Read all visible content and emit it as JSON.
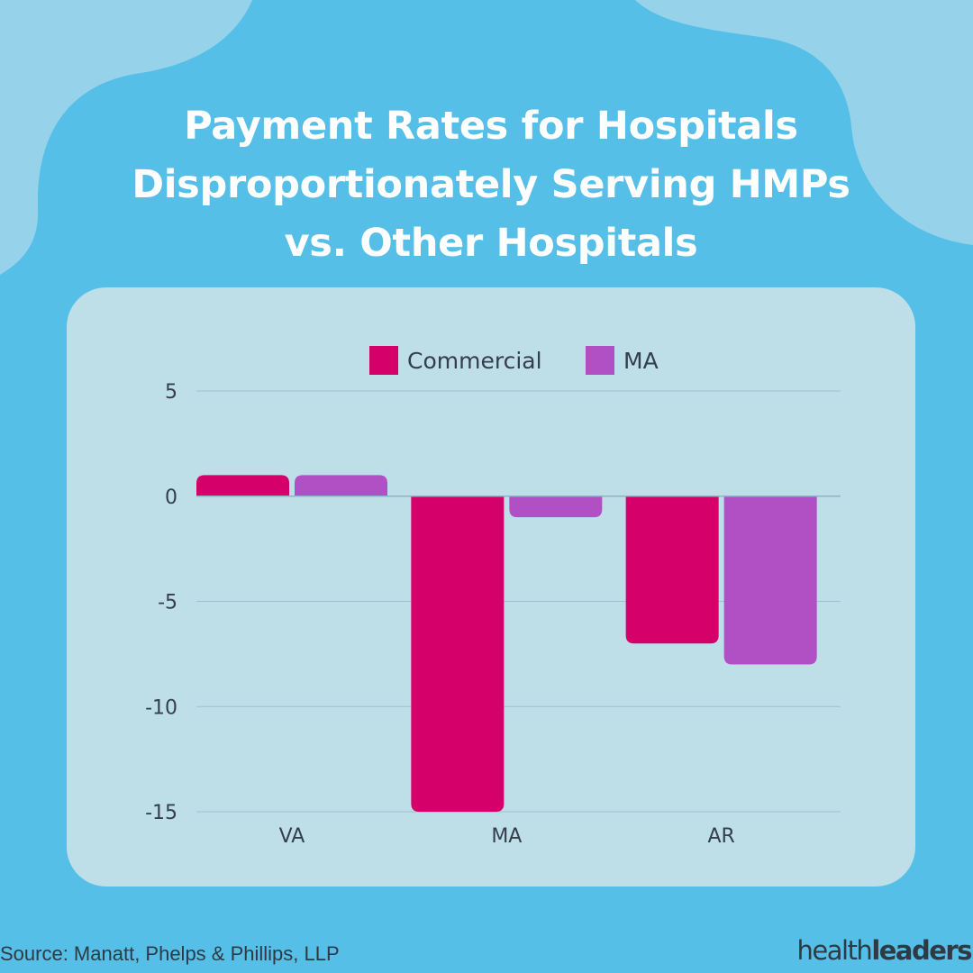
{
  "title_lines": [
    "Payment Rates for Hospitals",
    "Disproportionately Serving HMPs",
    "vs. Other Hospitals"
  ],
  "source": "Source: Manatt, Phelps & Phillips, LLP",
  "brand": {
    "part1": "health",
    "part2": "leaders"
  },
  "colors": {
    "background": "#56bfe8",
    "blob": "#96d3ea",
    "panel": "#bfdfe8",
    "commercial": "#d5006a",
    "ma": "#b150c4",
    "text": "#333f4a"
  },
  "chart_data": {
    "type": "bar",
    "categories": [
      "VA",
      "MA",
      "AR"
    ],
    "series": [
      {
        "name": "Commercial",
        "values": [
          1,
          -15,
          -7
        ],
        "color": "#d5006a"
      },
      {
        "name": "MA",
        "values": [
          1,
          -1,
          -8
        ],
        "color": "#b150c4"
      }
    ],
    "ylim": [
      -15,
      5
    ],
    "yticks": [
      5,
      0,
      -5,
      -10,
      -15
    ],
    "ytick_labels": [
      "5",
      "0",
      "-5",
      "-10",
      "-15"
    ],
    "grid": true,
    "legend_position": "top-center"
  }
}
